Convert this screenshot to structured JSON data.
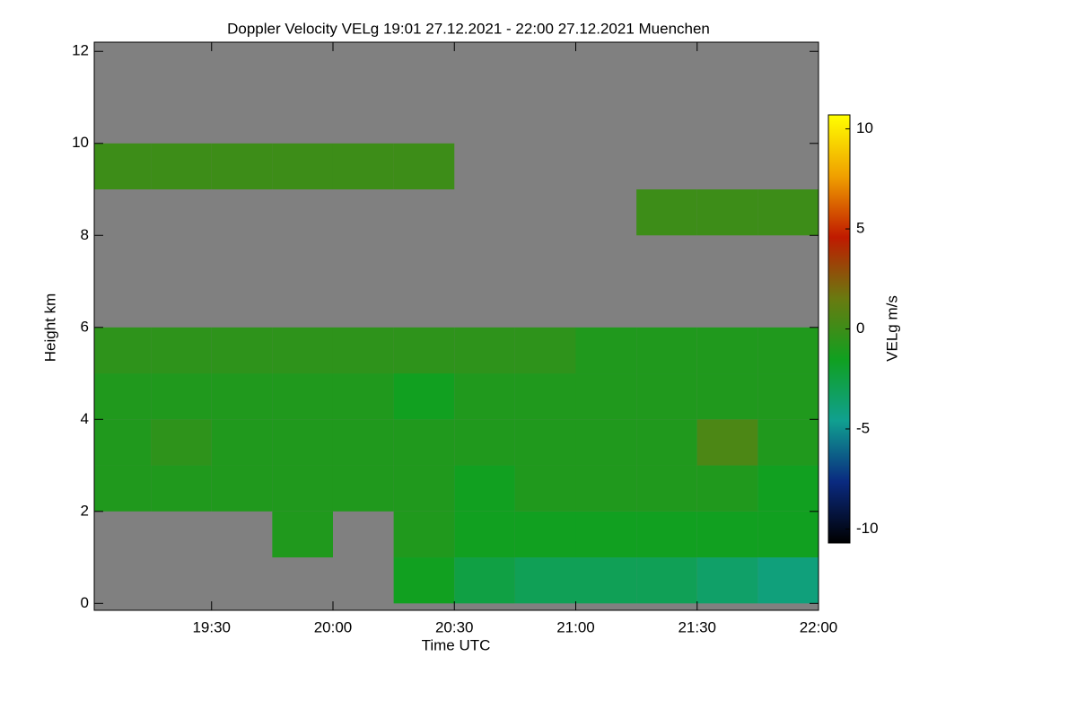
{
  "chart_data": {
    "type": "heatmap",
    "title": "Doppler Velocity VELg   19:01 27.12.2021 - 22:00 27.12.2021 Muenchen",
    "x_label": "Time UTC",
    "y_label": "Height km",
    "colorbar_label": "VELg m/s",
    "xlim": [
      1141,
      1320
    ],
    "xticks": [
      {
        "value": 1170,
        "label": "19:30"
      },
      {
        "value": 1200,
        "label": "20:00"
      },
      {
        "value": 1230,
        "label": "20:30"
      },
      {
        "value": 1260,
        "label": "21:00"
      },
      {
        "value": 1290,
        "label": "21:30"
      },
      {
        "value": 1320,
        "label": "22:00"
      }
    ],
    "ylim": [
      -0.15,
      12.2
    ],
    "yticks": [
      0,
      2,
      4,
      6,
      8,
      10,
      12
    ],
    "zlim": [
      -10.7,
      10.7
    ],
    "zticks": [
      -10,
      -5,
      0,
      5,
      10
    ],
    "background": "#808080",
    "colorscale": [
      "#000000",
      "#0a2a80",
      "#10a090",
      "#10a020",
      "#6a7a10",
      "#c01a00",
      "#f0a000",
      "#ffff00"
    ],
    "x_bins": [
      1141,
      1155,
      1170,
      1185,
      1200,
      1215,
      1230,
      1245,
      1260,
      1275,
      1290,
      1305,
      1320
    ],
    "y_bins": [
      0,
      1,
      2,
      3,
      4,
      5,
      6,
      7,
      8,
      9,
      10,
      11,
      12
    ],
    "z": [
      [
        null,
        null,
        null,
        null,
        null,
        -1.5,
        -2.5,
        -3,
        -3,
        -3,
        -3.5,
        -4
      ],
      [
        null,
        null,
        null,
        -1,
        null,
        -1,
        -1.5,
        -1.5,
        -1.5,
        -1.5,
        -1.5,
        -1.5
      ],
      [
        -1,
        -1,
        -1,
        -1,
        -1,
        -1,
        -1.5,
        -1,
        -1,
        -1,
        -1,
        -1.5
      ],
      [
        -1,
        -0.5,
        -1,
        -1,
        -1,
        -1,
        -1,
        -1,
        -1,
        -1,
        0.5,
        -1
      ],
      [
        -1,
        -1,
        -1,
        -1,
        -1,
        -1.5,
        -1,
        -1,
        -1,
        -1,
        -1,
        -1
      ],
      [
        -0.5,
        -0.5,
        -0.5,
        -0.5,
        -0.5,
        -0.5,
        -0.5,
        -0.5,
        -1,
        -1,
        -1,
        -1
      ],
      [
        null,
        null,
        null,
        null,
        null,
        null,
        null,
        null,
        null,
        null,
        null,
        null
      ],
      [
        null,
        null,
        null,
        null,
        null,
        null,
        null,
        null,
        null,
        null,
        null,
        null
      ],
      [
        null,
        null,
        null,
        null,
        null,
        null,
        null,
        null,
        null,
        0,
        0,
        0
      ],
      [
        0,
        0,
        0,
        0,
        0,
        0,
        null,
        null,
        null,
        null,
        null,
        null
      ],
      [
        null,
        null,
        null,
        null,
        null,
        null,
        null,
        null,
        null,
        null,
        null,
        null
      ],
      [
        null,
        null,
        null,
        null,
        null,
        null,
        null,
        null,
        null,
        null,
        null,
        null
      ]
    ]
  }
}
